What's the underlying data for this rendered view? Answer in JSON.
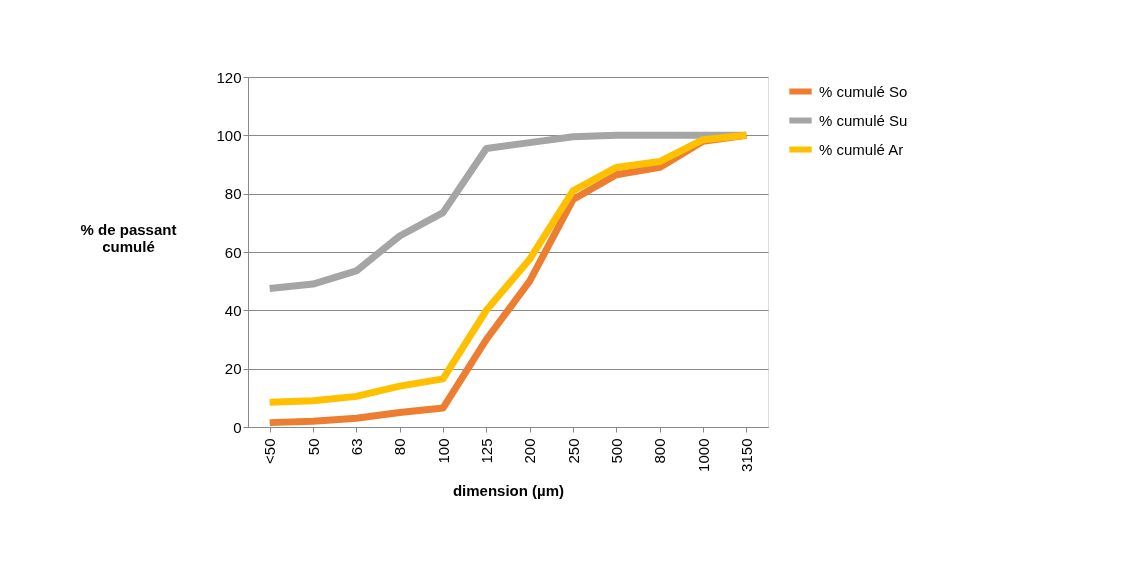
{
  "chart_data": {
    "type": "line",
    "xlabel": "dimension (µm)",
    "ylabel": "% de passant cumulé",
    "categories": [
      "<50",
      "50",
      "63",
      "80",
      "100",
      "125",
      "200",
      "250",
      "500",
      "800",
      "1000",
      "3150"
    ],
    "series": [
      {
        "name": "% cumulé So",
        "color": "#ed7d31",
        "values": [
          1.5,
          2,
          3,
          5,
          6.5,
          30,
          50,
          78,
          86.5,
          89,
          98,
          100
        ]
      },
      {
        "name": "% cumulé Su",
        "color": "#a5a5a5",
        "values": [
          47.5,
          49,
          53.5,
          65.5,
          73.5,
          95.5,
          97.5,
          99.5,
          100,
          100,
          100,
          100
        ]
      },
      {
        "name": "% cumulé Ar",
        "color": "#ffc000",
        "values": [
          8.5,
          9,
          10.5,
          14,
          16.5,
          40,
          57.5,
          81,
          89,
          91,
          98.5,
          100
        ]
      }
    ],
    "ylim": [
      0,
      120
    ],
    "yticks": [
      0,
      20,
      40,
      60,
      80,
      100,
      120
    ],
    "grid": "y",
    "legend": "right",
    "marker": "none",
    "line_style": "solid"
  }
}
